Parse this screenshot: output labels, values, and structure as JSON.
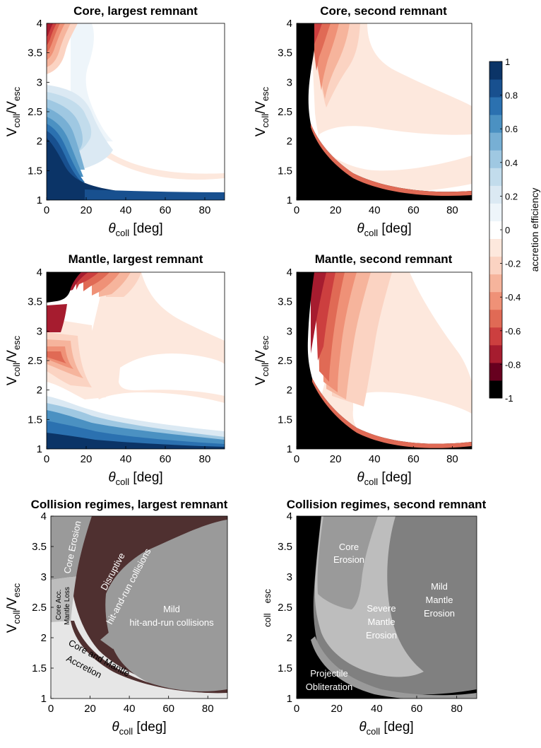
{
  "colors": {
    "scale": [
      "#000000",
      "#67001f",
      "#a61c2f",
      "#cc3f3f",
      "#e06a55",
      "#ef9177",
      "#f6b49c",
      "#fbd3c2",
      "#fde8dd",
      "#ffffff",
      "#eef5fa",
      "#dbe9f3",
      "#c2dcec",
      "#9fc8e2",
      "#77afd4",
      "#4b91c2",
      "#2b71b0",
      "#18508f",
      "#0b3467"
    ],
    "regime_darkbrown": "#4f3030",
    "regime_gray": "#9a9a9a",
    "regime_lightgray": "#e6e6e6",
    "regime_midgray": "#bdbdbd",
    "regime_black": "#000000"
  },
  "colorbar": {
    "label": "accretion efficiency",
    "ticks": [
      "1",
      "0.8",
      "0.6",
      "0.4",
      "0.2",
      "0",
      "-0.2",
      "-0.4",
      "-0.6",
      "-0.8",
      "-1"
    ],
    "range": [
      -1,
      1
    ]
  },
  "axis_text": {
    "xlabel_theta": "θ",
    "xlabel_sub": "coll",
    "xlabel_unit": " [deg]",
    "ylabel_v": "V",
    "ylabel_sub1": "coll",
    "ylabel_slash": "/V",
    "ylabel_sub2": "esc",
    "ylabel_partial_sub1": "coll",
    "ylabel_partial_sub2": "esc"
  },
  "regime_labels": {
    "core_erosion": "Core Erosion",
    "disruptive_1": "Disruptive",
    "disruptive_2": "hit-and-run collisions",
    "core_acc_1": "Core Acc.",
    "core_acc_2": "Mantle Loss",
    "mild_1": "Mild",
    "mild_2": "hit-and-run collisions",
    "core_mantle_acc_1": "Core and Mantle",
    "core_mantle_acc_2": "Accretion",
    "core_erosion_2a": "Core",
    "core_erosion_2b": "Erosion",
    "severe_1": "Severe",
    "severe_2": "Mantle",
    "severe_3": "Erosion",
    "mild_mantle_1": "Mild",
    "mild_mantle_2": "Mantle",
    "mild_mantle_3": "Erosion",
    "projectile_1": "Projectile",
    "projectile_2": "Obliteration"
  },
  "chart_data": [
    {
      "type": "heatmap",
      "title": "Core, largest remnant",
      "xlabel": "θcoll [deg]",
      "ylabel": "Vcoll/Vesc",
      "xlim": [
        0,
        90
      ],
      "ylim": [
        1,
        4
      ],
      "xticks": [
        "0",
        "20",
        "40",
        "60",
        "80"
      ],
      "yticks": [
        "1",
        "1.5",
        "2",
        "2.5",
        "3",
        "3.5",
        "4"
      ],
      "zlim": [
        -1,
        1
      ]
    },
    {
      "type": "heatmap",
      "title": "Core, second remnant",
      "xlabel": "θcoll [deg]",
      "ylabel": "Vcoll/Vesc",
      "xlim": [
        0,
        90
      ],
      "ylim": [
        1,
        4
      ],
      "xticks": [
        "0",
        "20",
        "40",
        "60",
        "80"
      ],
      "yticks": [
        "1",
        "1.5",
        "2",
        "2.5",
        "3",
        "3.5",
        "4"
      ],
      "zlim": [
        -1,
        1
      ]
    },
    {
      "type": "heatmap",
      "title": "Mantle, largest remnant",
      "xlabel": "θcoll [deg]",
      "ylabel": "Vcoll/Vesc",
      "xlim": [
        0,
        90
      ],
      "ylim": [
        1,
        4
      ],
      "xticks": [
        "0",
        "20",
        "40",
        "60",
        "80"
      ],
      "yticks": [
        "1",
        "1.5",
        "2",
        "2.5",
        "3",
        "3.5",
        "4"
      ],
      "zlim": [
        -1,
        1
      ]
    },
    {
      "type": "heatmap",
      "title": "Mantle, second remnant",
      "xlabel": "θcoll [deg]",
      "ylabel": "Vcoll/Vesc",
      "xlim": [
        0,
        90
      ],
      "ylim": [
        1,
        4
      ],
      "xticks": [
        "0",
        "20",
        "40",
        "60",
        "80"
      ],
      "yticks": [
        "1",
        "1.5",
        "2",
        "2.5",
        "3",
        "3.5",
        "4"
      ],
      "zlim": [
        -1,
        1
      ]
    },
    {
      "type": "heatmap",
      "title": "Collision regimes, largest remnant",
      "xlabel": "θcoll [deg]",
      "ylabel": "Vcoll/Vesc",
      "xlim": [
        0,
        90
      ],
      "ylim": [
        1,
        4
      ],
      "xticks": [
        "0",
        "20",
        "40",
        "60",
        "80"
      ],
      "yticks": [
        "1",
        "1.5",
        "2",
        "2.5",
        "3",
        "3.5",
        "4"
      ],
      "regimes": [
        "Core Erosion",
        "Disruptive hit-and-run collisions",
        "Core Acc. Mantle Loss",
        "Mild hit-and-run collisions",
        "Core and Mantle Accretion"
      ]
    },
    {
      "type": "heatmap",
      "title": "Collision regimes, second remnant",
      "xlabel": "θcoll [deg]",
      "ylabel": "coll esc",
      "xlim": [
        0,
        90
      ],
      "ylim": [
        1,
        4
      ],
      "xticks": [
        "0",
        "20",
        "40",
        "60",
        "80"
      ],
      "yticks": [
        "1",
        "1.5",
        "2",
        "2.5",
        "3",
        "3.5",
        "4"
      ],
      "regimes": [
        "Core Erosion",
        "Severe Mantle Erosion",
        "Mild Mantle Erosion",
        "Projectile Obliteration"
      ]
    }
  ]
}
